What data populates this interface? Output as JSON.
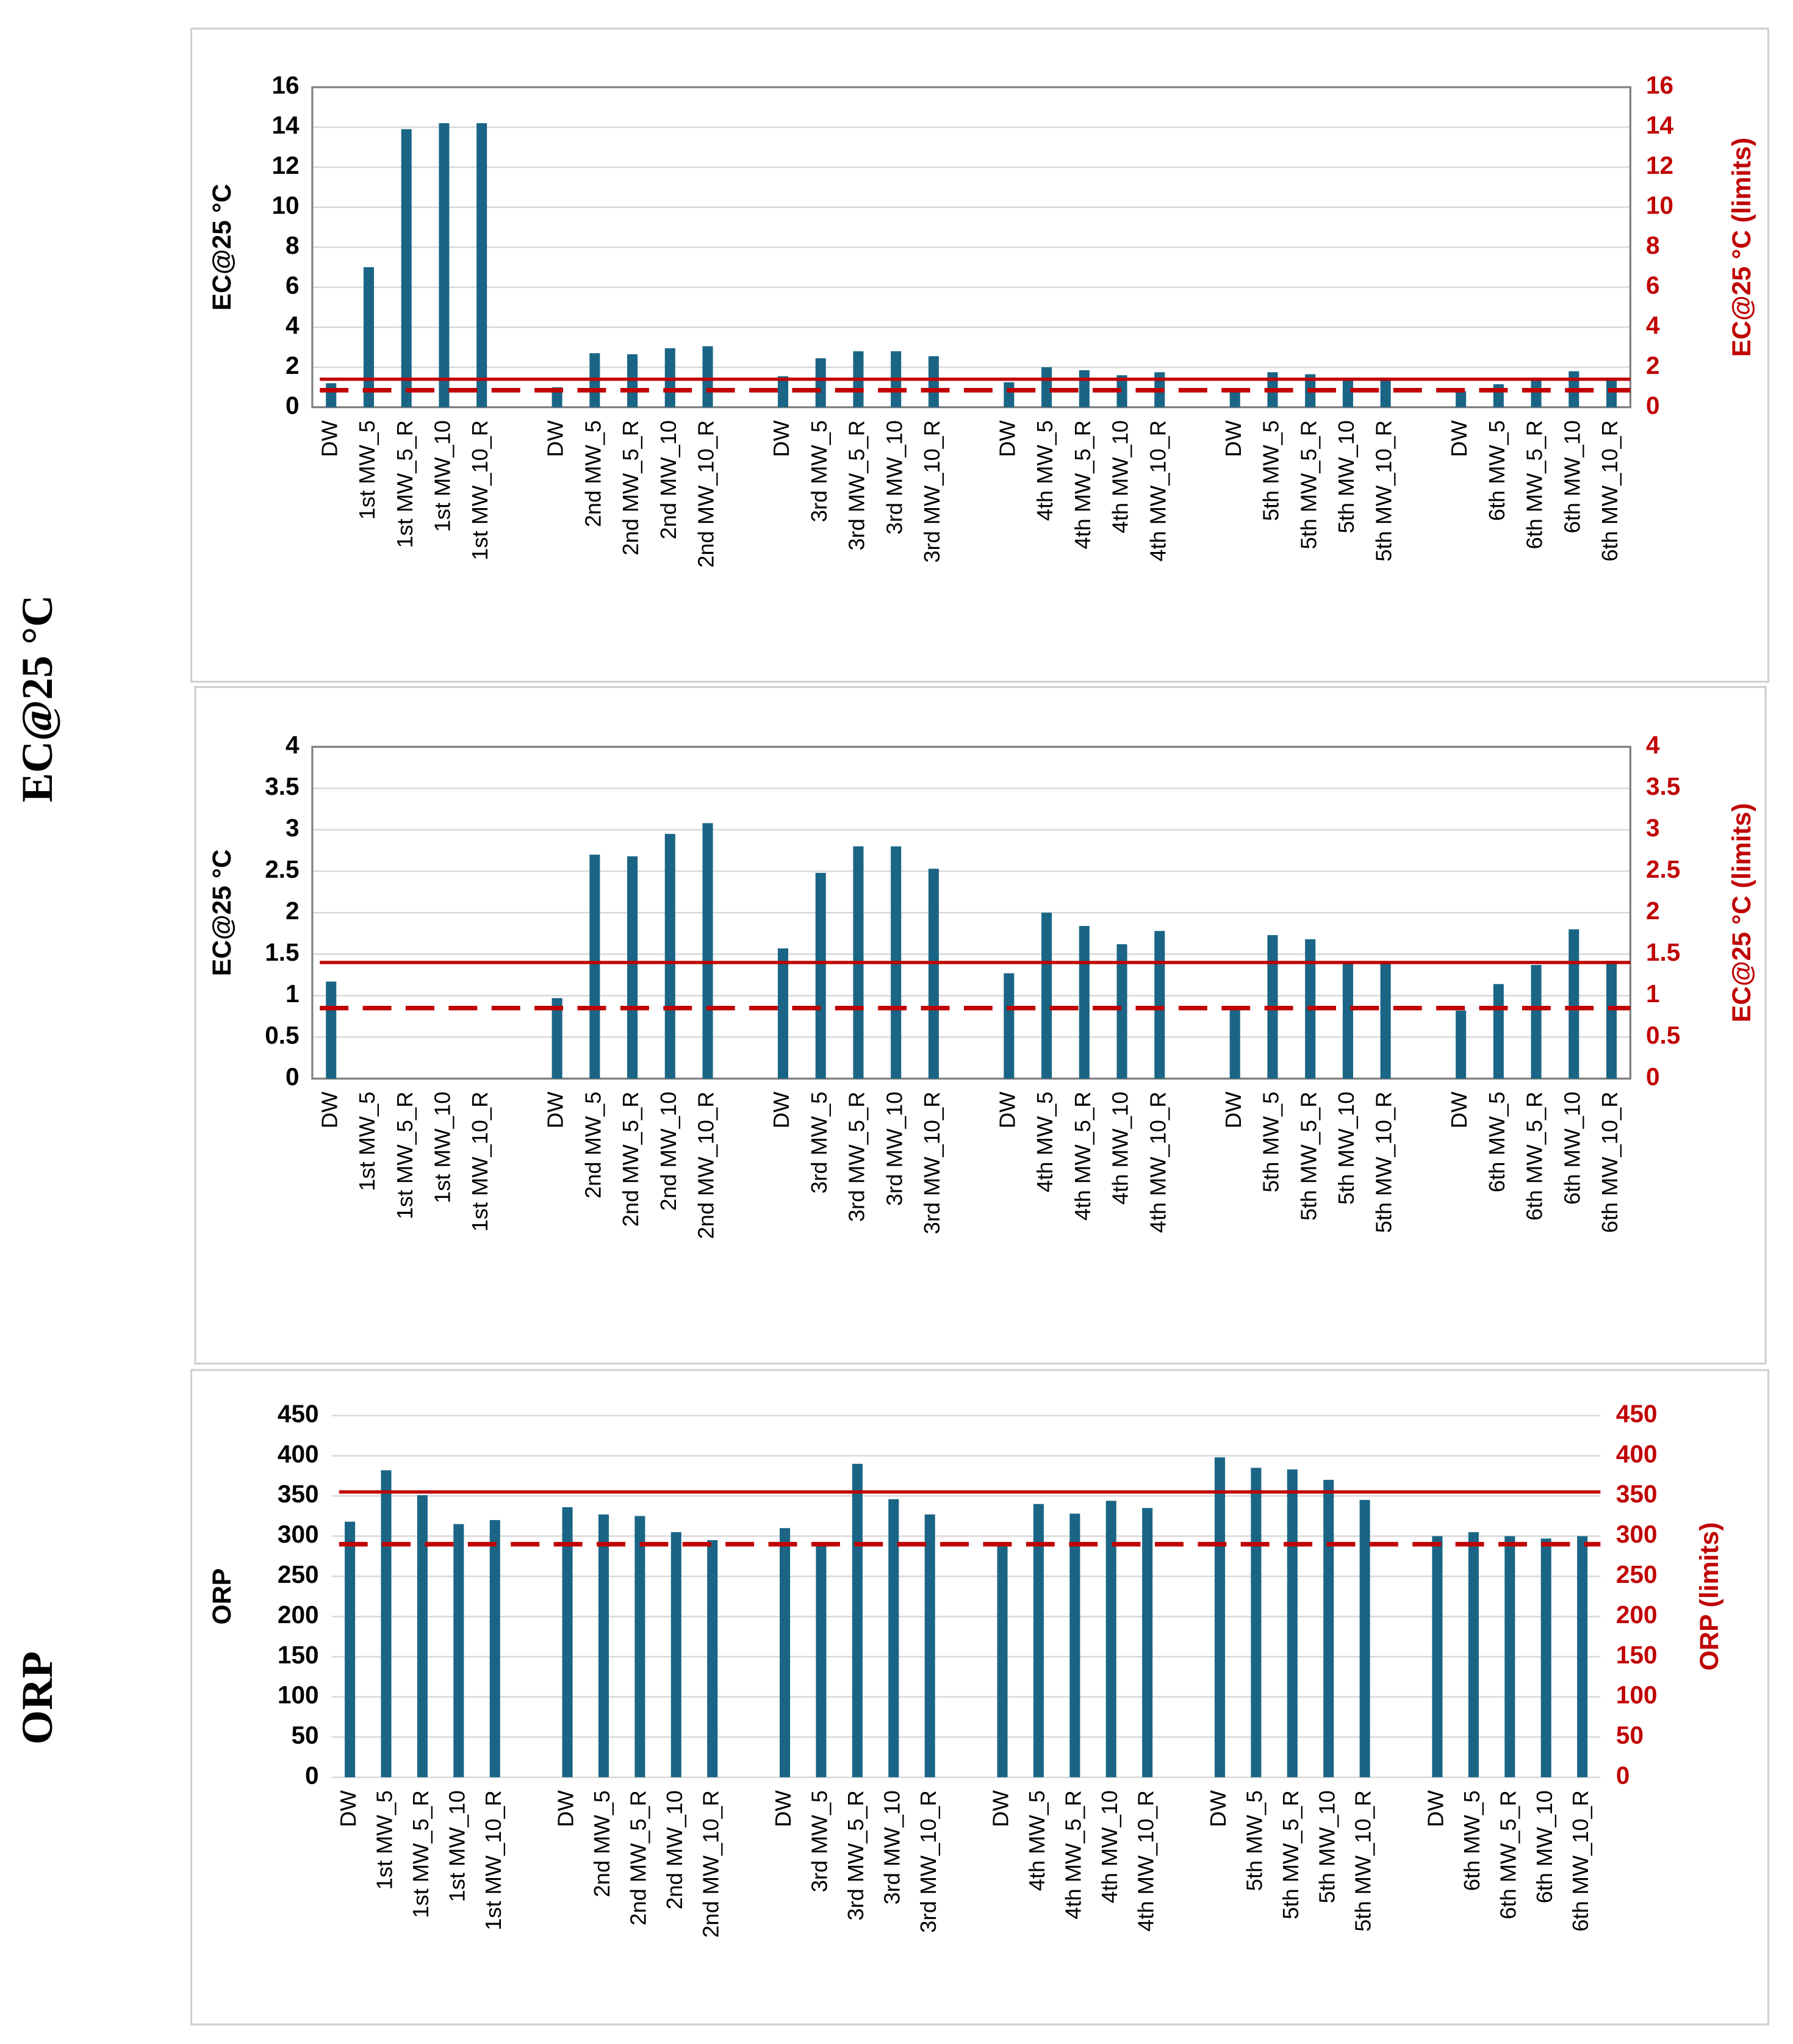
{
  "side_labels": [
    "EC@25 °C",
    "ORP"
  ],
  "chart_data": [
    {
      "type": "bar",
      "ylabel": "EC@25 °C",
      "y2label": "EC@25 °C (limits)",
      "color": "#1a6585",
      "limit_color": "#c00000",
      "frame": true,
      "categories": [
        "DW",
        "1st MW_5",
        "1st MW_5_R",
        "1st MW_10",
        "1st MW_10_R",
        null,
        "DW",
        "2nd MW_5",
        "2nd MW_5_R",
        "2nd MW_10",
        "2nd MW_10_R",
        null,
        "DW",
        "3rd MW_5",
        "3rd MW_5_R",
        "3rd MW_10",
        "3rd MW_10_R",
        null,
        "DW",
        "4th MW_5",
        "4th MW_5_R",
        "4th MW_10",
        "4th MW_10_R",
        null,
        "DW",
        "5th MW_5",
        "5th MW_5_R",
        "5th MW_10",
        "5th MW_10_R",
        null,
        "DW",
        "6th MW_5",
        "6th MW_5_R",
        "6th MW_10",
        "6th MW_10_R"
      ],
      "values": [
        1.2,
        7.0,
        13.9,
        14.2,
        14.2,
        null,
        1.0,
        2.7,
        2.65,
        2.95,
        3.05,
        null,
        1.55,
        2.45,
        2.8,
        2.8,
        2.55,
        null,
        1.25,
        2.0,
        1.85,
        1.6,
        1.75,
        null,
        0.85,
        1.75,
        1.65,
        1.4,
        1.4,
        null,
        0.8,
        1.15,
        1.35,
        1.8,
        1.4
      ],
      "limits": [
        {
          "value": 1.4,
          "dash": false
        },
        {
          "value": 0.85,
          "dash": true
        }
      ],
      "ylim": [
        0,
        16
      ],
      "yticks": [
        0,
        2,
        4,
        6,
        8,
        10,
        12,
        14,
        16
      ],
      "y2lim": [
        0,
        16
      ],
      "y2ticks": [
        0,
        2,
        4,
        6,
        8,
        10,
        12,
        14,
        16
      ],
      "grid": true
    },
    {
      "type": "bar",
      "ylabel": "EC@25 °C",
      "y2label": "EC@25 °C (limits)",
      "color": "#1a6585",
      "limit_color": "#c00000",
      "frame": true,
      "categories": [
        "DW",
        "1st MW_5",
        "1st MW_5_R",
        "1st MW_10",
        "1st MW_10_R",
        null,
        "DW",
        "2nd MW_5",
        "2nd MW_5_R",
        "2nd MW_10",
        "2nd MW_10_R",
        null,
        "DW",
        "3rd MW_5",
        "3rd MW_5_R",
        "3rd MW_10",
        "3rd MW_10_R",
        null,
        "DW",
        "4th MW_5",
        "4th MW_5_R",
        "4th MW_10",
        "4th MW_10_R",
        null,
        "DW",
        "5th MW_5",
        "5th MW_5_R",
        "5th MW_10",
        "5th MW_10_R",
        null,
        "DW",
        "6th MW_5",
        "6th MW_5_R",
        "6th MW_10",
        "6th MW_10_R"
      ],
      "values": [
        1.17,
        null,
        null,
        null,
        null,
        null,
        0.97,
        2.7,
        2.68,
        2.95,
        3.08,
        null,
        1.57,
        2.48,
        2.8,
        2.8,
        2.53,
        null,
        1.27,
        2.0,
        1.84,
        1.62,
        1.78,
        null,
        0.85,
        1.73,
        1.68,
        1.4,
        1.4,
        null,
        0.82,
        1.14,
        1.37,
        1.8,
        1.42
      ],
      "limits": [
        {
          "value": 1.4,
          "dash": false
        },
        {
          "value": 0.85,
          "dash": true
        }
      ],
      "ylim": [
        0,
        4
      ],
      "yticks": [
        0,
        0.5,
        1,
        1.5,
        2,
        2.5,
        3,
        3.5,
        4
      ],
      "y2lim": [
        0,
        4
      ],
      "y2ticks": [
        0,
        0.5,
        1,
        1.5,
        2,
        2.5,
        3,
        3.5,
        4
      ],
      "grid": true
    },
    {
      "type": "bar",
      "ylabel": "ORP",
      "y2label": "ORP (limits)",
      "color": "#1a6585",
      "limit_color": "#c00000",
      "frame": false,
      "categories": [
        "DW",
        "1st MW_5",
        "1st MW_5_R",
        "1st MW_10",
        "1st MW_10_R",
        null,
        "DW",
        "2nd MW_5",
        "2nd MW_5_R",
        "2nd MW_10",
        "2nd MW_10_R",
        null,
        "DW",
        "3rd MW_5",
        "3rd MW_5_R",
        "3rd MW_10",
        "3rd MW_10_R",
        null,
        "DW",
        "4th MW_5",
        "4th MW_5_R",
        "4th MW_10",
        "4th MW_10_R",
        null,
        "DW",
        "5th MW_5",
        "5th MW_5_R",
        "5th MW_10",
        "5th MW_10_R",
        null,
        "DW",
        "6th MW_5",
        "6th MW_5_R",
        "6th MW_10",
        "6th MW_10_R"
      ],
      "values": [
        318,
        382,
        351,
        315,
        320,
        null,
        336,
        327,
        325,
        305,
        295,
        null,
        310,
        290,
        390,
        346,
        327,
        null,
        290,
        340,
        328,
        344,
        335,
        null,
        398,
        385,
        383,
        370,
        345,
        null,
        300,
        305,
        300,
        297,
        300
      ],
      "limits": [
        {
          "value": 355,
          "dash": false
        },
        {
          "value": 290,
          "dash": true
        }
      ],
      "ylim": [
        0,
        450
      ],
      "yticks": [
        0,
        50,
        100,
        150,
        200,
        250,
        300,
        350,
        400,
        450
      ],
      "y2lim": [
        0,
        450
      ],
      "y2ticks": [
        0,
        50,
        100,
        150,
        200,
        250,
        300,
        350,
        400,
        450
      ],
      "grid": true
    }
  ]
}
